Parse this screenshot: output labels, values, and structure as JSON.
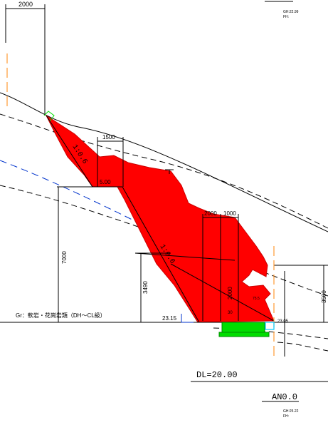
{
  "dimensions": {
    "top_width": "2000",
    "berm_width": "1500",
    "width_a": "2000",
    "width_b": "1000",
    "height_total": "7000",
    "height_lower": "3490",
    "height_wall": "2000",
    "height_right": "3500"
  },
  "slope_labels": {
    "upper": "1:0.6",
    "lower": "1:0.6"
  },
  "levels": {
    "berm": "5.00",
    "toe": "23.15",
    "right_toe": "23.05"
  },
  "small_labels": {
    "angle_a": "30",
    "angle_b": "75.5"
  },
  "ground_note": "Gr：軟岩・花崗岩類（DH～CL級）",
  "dl_label": "DL=20.00",
  "station_label": "AN0.0",
  "gh_top": "GH:22.99\nFH:",
  "gh_bottom": "GH:25.22\nFH:",
  "colors": {
    "fill_red": "#ff0000",
    "green": "#00dd00",
    "cyan": "#00ccff",
    "blue_dash": "#0033cc",
    "orange": "#ff9933"
  }
}
